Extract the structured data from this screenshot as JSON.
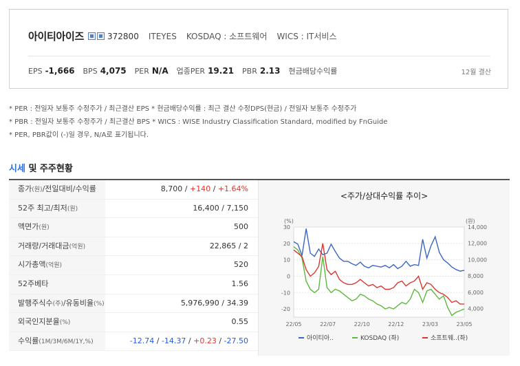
{
  "company": {
    "name": "아이티아이즈",
    "code": "372800",
    "ticker": "ITEYES",
    "market": "KOSDAQ : 소프트웨어",
    "wics": "WICS : IT서비스"
  },
  "metrics": [
    {
      "label": "EPS",
      "value": "-1,666"
    },
    {
      "label": "BPS",
      "value": "4,075"
    },
    {
      "label": "PER",
      "value": "N/A"
    },
    {
      "label": "업종PER",
      "value": "19.21"
    },
    {
      "label": "PBR",
      "value": "2.13"
    },
    {
      "label": "현금배당수익률",
      "value": ""
    }
  ],
  "closing_label": "12월 결산",
  "notes": [
    "* PER : 전일자 보통주 수정주가 / 최근결산 EPS * 현금배당수익률 : 최근 결산 수정DPS(현금) / 전일자 보통주 수정주가",
    "* PBR : 전일자 보통주 수정주가 / 최근결산 BPS * WICS : WISE Industry Classification Standard, modified by FnGuide",
    "* PER, PBR값이 (-)일 경우, N/A로 표기됩니다."
  ],
  "section_title": {
    "highlight": "시세",
    "rest": " 및 주주현황"
  },
  "table": [
    {
      "label": "종가",
      "unit": "(원)",
      "label2": "/전일대비/수익률",
      "v1": "8,700",
      "v2": "+140",
      "v3": "+1.64%"
    },
    {
      "label": "52주 최고/최저",
      "unit": "(원)",
      "value": "16,400 / 7,150"
    },
    {
      "label": "액면가",
      "unit": "(원)",
      "value": "500"
    },
    {
      "label": "거래량/거래대금",
      "unit": "(억원)",
      "value": "22,865 / 2"
    },
    {
      "label": "시가총액",
      "unit": "(억원)",
      "value": "520"
    },
    {
      "label": "52주베타",
      "unit": "",
      "value": "1.56"
    },
    {
      "label": "발행주식수",
      "unit": "(주)",
      "label2": "/유동비율",
      "unit2": "(%)",
      "value": "5,976,990 / 34.39"
    },
    {
      "label": "외국인지분율",
      "unit": "(%)",
      "value": "0.55"
    },
    {
      "label": "수익률",
      "unit": "(1M/3M/6M/1Y,%)",
      "r1": "-12.74",
      "r2": "-14.37",
      "r3": "+0.23",
      "r4": "-27.50"
    }
  ],
  "chart_data": {
    "type": "line",
    "title": "<주가/상대수익률 추이>",
    "left_unit": "(%)",
    "right_unit": "(원)",
    "left_ylim": [
      -25,
      30
    ],
    "left_ticks": [
      "30",
      "20",
      "10",
      "0",
      "-10",
      "-20"
    ],
    "right_ylim": [
      2960,
      14000
    ],
    "right_ticks": [
      "14,000",
      "12,000",
      "10,000",
      "8,000",
      "6,000",
      "4,000"
    ],
    "x_ticks": [
      "22/05",
      "22/07",
      "22/10",
      "22/12",
      "23/03",
      "23/05"
    ],
    "series": [
      {
        "name": "아이티아..",
        "color": "#3b64c8",
        "axis": "right",
        "values": [
          12200,
          11900,
          10500,
          13800,
          10800,
          10400,
          11300,
          10600,
          10800,
          11900,
          11000,
          10200,
          9800,
          9800,
          9500,
          9300,
          9700,
          9200,
          9000,
          9300,
          9200,
          9100,
          9300,
          9000,
          9400,
          8900,
          9200,
          9800,
          9200,
          9400,
          9300,
          12500,
          10200,
          11700,
          12800,
          10900,
          10000,
          9600,
          9100,
          8800,
          8600,
          8700
        ]
      },
      {
        "name": "KOSDAQ (좌)",
        "color": "#5ab93a",
        "axis": "left",
        "values": [
          18,
          16,
          11,
          -3,
          -8,
          -10,
          -8,
          12,
          -7,
          -10,
          -8,
          -9,
          -11,
          -13,
          -15,
          -14,
          -11,
          -12,
          -14,
          -15,
          -17,
          -18,
          -20,
          -19,
          -20,
          -18,
          -16,
          -17,
          -14,
          -8,
          -10,
          -16,
          -9,
          -8,
          -11,
          -14,
          -12,
          -19,
          -24,
          -22,
          -21,
          -20
        ]
      },
      {
        "name": "소프트웨..(좌)",
        "color": "#d9362e",
        "axis": "left",
        "values": [
          16,
          14,
          12,
          4,
          0,
          2,
          6,
          20,
          4,
          1,
          3,
          -2,
          -4,
          -5,
          -5,
          -4,
          -2,
          -4,
          -6,
          -5,
          -7,
          -6,
          -8,
          -8,
          -7,
          -4,
          -3,
          -6,
          -4,
          -3,
          0,
          -8,
          -4,
          -5,
          -8,
          -10,
          -11,
          -13,
          -16,
          -15,
          -17,
          -17
        ]
      }
    ]
  }
}
